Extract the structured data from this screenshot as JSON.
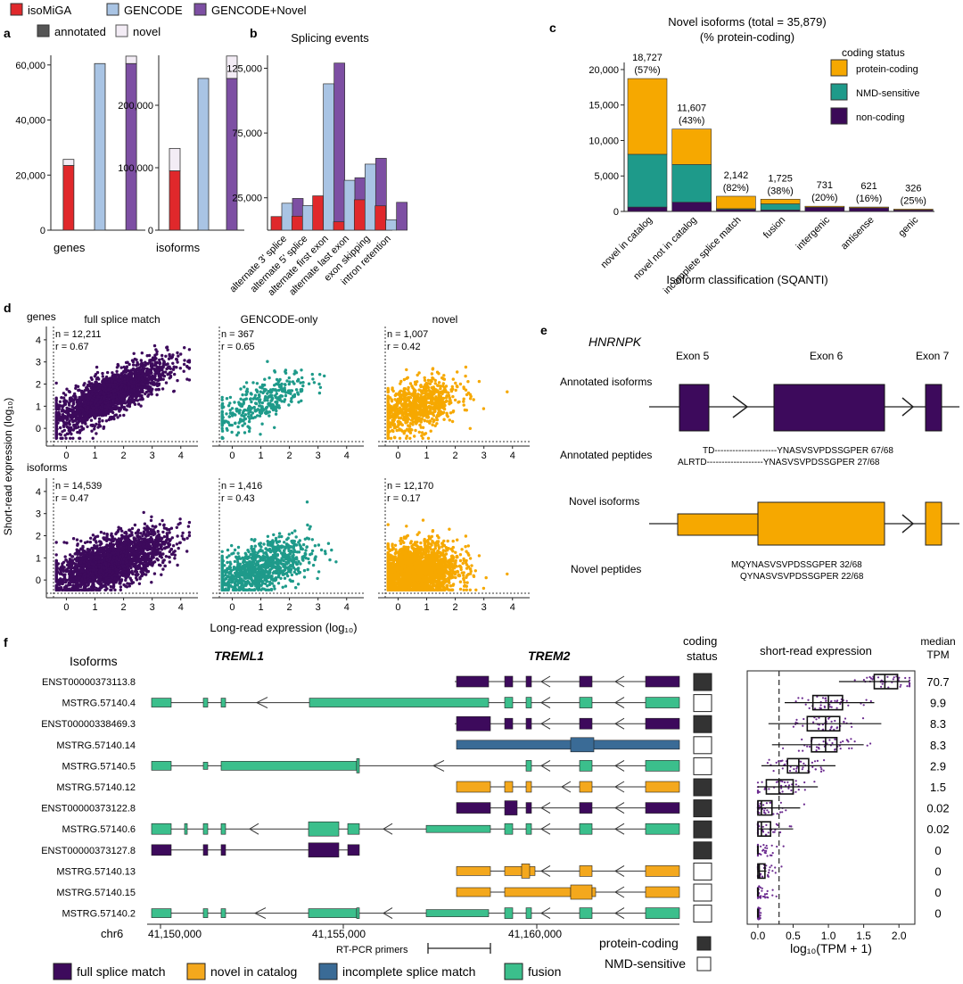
{
  "colors": {
    "isomiga": "#e0282b",
    "gencode": "#a9c4e4",
    "gencode_novel": "#7d4fa3",
    "novel_top": "#f3ecf5",
    "protein_coding": "#f6a800",
    "nmd": "#1e9a8a",
    "non_coding": "#3b0a57",
    "fsm": "#3d0a5c",
    "nic": "#f4a81d",
    "ism": "#3a6b96",
    "fusion": "#3bbf8c",
    "scatter_fsm": "#3d0a5c",
    "scatter_gencode": "#1e9a8a",
    "scatter_novel": "#f6a800"
  },
  "panel_labels": [
    "a",
    "b",
    "c",
    "d",
    "e",
    "f"
  ],
  "legend_a": {
    "items": [
      "isoMiGA",
      "GENCODE",
      "GENCODE+Novel",
      "annotated",
      "novel"
    ]
  },
  "chart_data": [
    {
      "id": "a_genes",
      "type": "bar",
      "xlabel": "genes",
      "categories": [
        "isoMiGA",
        "GENCODE",
        "GENCODE+Novel"
      ],
      "annotated": [
        23500,
        60500,
        60500
      ],
      "novel": [
        2200,
        0,
        2700
      ],
      "ylim": [
        0,
        63500
      ],
      "yticks": [
        0,
        20000,
        40000,
        60000
      ],
      "ytick_labels": [
        "0",
        "20,000",
        "40,000",
        "60,000"
      ]
    },
    {
      "id": "a_isoforms",
      "type": "bar",
      "xlabel": "isoforms",
      "categories": [
        "isoMiGA",
        "GENCODE",
        "GENCODE+Novel"
      ],
      "annotated": [
        95000,
        243000,
        243000
      ],
      "novel": [
        35900,
        0,
        35879
      ],
      "ylim": [
        0,
        280000
      ],
      "yticks": [
        0,
        100000,
        200000
      ],
      "ytick_labels": [
        "0",
        "100,000",
        "200,000"
      ]
    },
    {
      "id": "b",
      "type": "bar",
      "title": "Splicing events",
      "categories": [
        "alternate 3' splice",
        "alternate 5' splice",
        "alternate first exon",
        "alternate last exon",
        "exon skipping",
        "intron retention"
      ],
      "series": [
        {
          "name": "isoMiGA",
          "values": [
            10500,
            10800,
            26500,
            6500,
            23500,
            18800
          ]
        },
        {
          "name": "GENCODE",
          "values": [
            20800,
            19000,
            113000,
            38500,
            51000,
            8000
          ]
        },
        {
          "name": "GENCODE+Novel",
          "values": [
            24500,
            23500,
            129000,
            40500,
            55500,
            21500
          ]
        }
      ],
      "ylim": [
        0,
        135000
      ],
      "yticks": [
        25000,
        75000,
        125000
      ],
      "ytick_labels": [
        "25,000",
        "75,000",
        "125,000"
      ]
    },
    {
      "id": "c",
      "type": "bar",
      "title": "Novel isoforms (total = 35,879)",
      "subtitle": "(% protein-coding)",
      "xlabel": "Isoform classification (SQANTI)",
      "legend_title": "coding status",
      "legend": [
        "protein-coding",
        "NMD-sensitive",
        "non-coding"
      ],
      "categories": [
        "novel in catalog",
        "novel not in catalog",
        "incomplete splice match",
        "fusion",
        "intergenic",
        "antisense",
        "genic"
      ],
      "totals": [
        18727,
        11607,
        2142,
        1725,
        731,
        621,
        326
      ],
      "labels": [
        "18,727",
        "11,607",
        "2,142",
        "1,725",
        "731",
        "621",
        "326"
      ],
      "pct_labels": [
        "(57%)",
        "(43%)",
        "(82%)",
        "(38%)",
        "(20%)",
        "(16%)",
        "(25%)"
      ],
      "protein_coding": [
        10673,
        4991,
        1756,
        655,
        146,
        99,
        82
      ],
      "nmd_sensitive": [
        7434,
        5316,
        86,
        870,
        0,
        0,
        0
      ],
      "non_coding": [
        620,
        1300,
        300,
        200,
        585,
        522,
        244
      ],
      "ylim": [
        0,
        21000
      ],
      "yticks": [
        0,
        5000,
        10000,
        15000,
        20000
      ],
      "ytick_labels": [
        "0",
        "5,000",
        "10,000",
        "15,000",
        "20,000"
      ]
    },
    {
      "id": "d",
      "type": "scatter",
      "xlabel": "Long-read expression (log₁₀)",
      "ylabel": "Short-read expression (log₁₀)",
      "row_labels": [
        "genes",
        "isoforms"
      ],
      "col_titles": [
        "full splice match",
        "GENCODE-only",
        "novel"
      ],
      "xlim": [
        -0.7,
        4.6
      ],
      "ylim": [
        -0.8,
        4.6
      ],
      "xticks": [
        0,
        1,
        2,
        3,
        4
      ],
      "yticks": [
        0,
        1,
        2,
        3,
        4
      ],
      "panels": [
        {
          "row": 0,
          "col": 0,
          "n": "n = 12,211",
          "r": "r = 0.67",
          "count": 2200,
          "corr": 0.67
        },
        {
          "row": 0,
          "col": 1,
          "n": "n = 367",
          "r": "r = 0.65",
          "count": 367,
          "corr": 0.65
        },
        {
          "row": 0,
          "col": 2,
          "n": "n = 1,007",
          "r": "r = 0.42",
          "count": 900,
          "corr": 0.42
        },
        {
          "row": 1,
          "col": 0,
          "n": "n = 14,539",
          "r": "r = 0.47",
          "count": 2400,
          "corr": 0.47
        },
        {
          "row": 1,
          "col": 1,
          "n": "n = 1,416",
          "r": "r = 0.43",
          "count": 1000,
          "corr": 0.43
        },
        {
          "row": 1,
          "col": 2,
          "n": "n = 12,170",
          "r": "r = 0.17",
          "count": 2200,
          "corr": 0.17
        }
      ]
    },
    {
      "id": "f_box",
      "type": "box",
      "xlabel": "log₁₀(TPM + 1)",
      "title": "short-read expression",
      "median_title": "median TPM",
      "xlim": [
        -0.05,
        2.2
      ],
      "xticks": [
        0.0,
        0.5,
        1.0,
        1.5,
        2.0
      ],
      "xtick_labels": [
        "0.0",
        "0.5",
        "1.0",
        "1.5",
        "2.0"
      ],
      "threshold": 0.3,
      "rows": [
        {
          "q1": 1.65,
          "med": 1.8,
          "q3": 1.98,
          "lo": 1.15,
          "hi": 2.15,
          "spread": 0.45,
          "tpm": "70.7"
        },
        {
          "q1": 0.78,
          "med": 1.0,
          "q3": 1.2,
          "lo": 0.38,
          "hi": 1.65,
          "spread": 0.5,
          "tpm": "9.9"
        },
        {
          "q1": 0.7,
          "med": 0.96,
          "q3": 1.16,
          "lo": 0.15,
          "hi": 1.75,
          "spread": 0.55,
          "tpm": "8.3"
        },
        {
          "q1": 0.76,
          "med": 0.96,
          "q3": 1.12,
          "lo": 0.2,
          "hi": 1.5,
          "spread": 0.5,
          "tpm": "8.3"
        },
        {
          "q1": 0.42,
          "med": 0.58,
          "q3": 0.72,
          "lo": 0.05,
          "hi": 1.1,
          "spread": 0.45,
          "tpm": "2.9"
        },
        {
          "q1": 0.12,
          "med": 0.3,
          "q3": 0.5,
          "lo": 0.0,
          "hi": 0.85,
          "spread": 0.5,
          "tpm": "1.5"
        },
        {
          "q1": 0.0,
          "med": 0.05,
          "q3": 0.2,
          "lo": 0.0,
          "hi": 0.6,
          "spread": 0.4,
          "tpm": "0.02"
        },
        {
          "q1": 0.0,
          "med": 0.05,
          "q3": 0.18,
          "lo": 0.0,
          "hi": 0.5,
          "spread": 0.35,
          "tpm": "0.02"
        },
        {
          "q1": 0.0,
          "med": 0.0,
          "q3": 0.0,
          "lo": 0.0,
          "hi": 0.0,
          "spread": 0.3,
          "tpm": "0"
        },
        {
          "q1": 0.0,
          "med": 0.02,
          "q3": 0.1,
          "lo": 0.0,
          "hi": 0.12,
          "spread": 0.25,
          "tpm": "0"
        },
        {
          "q1": 0.0,
          "med": 0.0,
          "q3": 0.0,
          "lo": 0.0,
          "hi": 0.0,
          "spread": 0.2,
          "tpm": "0"
        },
        {
          "q1": 0.0,
          "med": 0.0,
          "q3": 0.0,
          "lo": 0.0,
          "hi": 0.0,
          "spread": 0.05,
          "tpm": "0"
        }
      ]
    }
  ],
  "panel_e": {
    "gene": "HNRNPK",
    "exons": [
      "Exon 5",
      "Exon 6",
      "Exon 7"
    ],
    "annotated_isoforms": "Annotated isoforms",
    "annotated_peptides": "Annotated peptides",
    "novel_isoforms": "Novel isoforms",
    "novel_peptides": "Novel peptides",
    "pep_annot": [
      "TD---------------------YNASVSVPDSSGPER  67/68",
      "ALRTD-------------------YNASVSVPDSSGPER  27/68"
    ],
    "pep_novel": [
      "MQYNASVSVPDSSGPER  32/68",
      "QYNASVSVPDSSGPER  22/68"
    ]
  },
  "panel_f": {
    "isoforms_header": "Isoforms",
    "gene1": "TREML1",
    "gene2": "TREM2",
    "coding_header": "coding status",
    "isoforms": [
      {
        "name": "ENST00000373113.8",
        "class": "fsm",
        "coding": true
      },
      {
        "name": "MSTRG.57140.4",
        "class": "fusion",
        "coding": false
      },
      {
        "name": "ENST00000338469.3",
        "class": "fsm",
        "coding": true
      },
      {
        "name": "MSTRG.57140.14",
        "class": "ism",
        "coding": false
      },
      {
        "name": "MSTRG.57140.5",
        "class": "fusion",
        "coding": false
      },
      {
        "name": "MSTRG.57140.12",
        "class": "nic",
        "coding": true
      },
      {
        "name": "ENST00000373122.8",
        "class": "fsm",
        "coding": true
      },
      {
        "name": "MSTRG.57140.6",
        "class": "fusion",
        "coding": true
      },
      {
        "name": "ENST00000373127.8",
        "class": "fsm",
        "coding": true
      },
      {
        "name": "MSTRG.57140.13",
        "class": "nic",
        "coding": false
      },
      {
        "name": "MSTRG.57140.15",
        "class": "nic",
        "coding": false
      },
      {
        "name": "MSTRG.57140.2",
        "class": "fusion",
        "coding": false
      }
    ],
    "chrom": "chr6",
    "coords": [
      "41,150,000",
      "41,155,000",
      "41,160,000"
    ],
    "primers": "RT-PCR primers",
    "coding_legend": [
      "protein-coding",
      "NMD-sensitive"
    ],
    "class_legend": [
      {
        "label": "full splice match",
        "key": "fsm"
      },
      {
        "label": "novel in catalog",
        "key": "nic"
      },
      {
        "label": "incomplete splice match",
        "key": "ism"
      },
      {
        "label": "fusion",
        "key": "fusion"
      }
    ]
  }
}
